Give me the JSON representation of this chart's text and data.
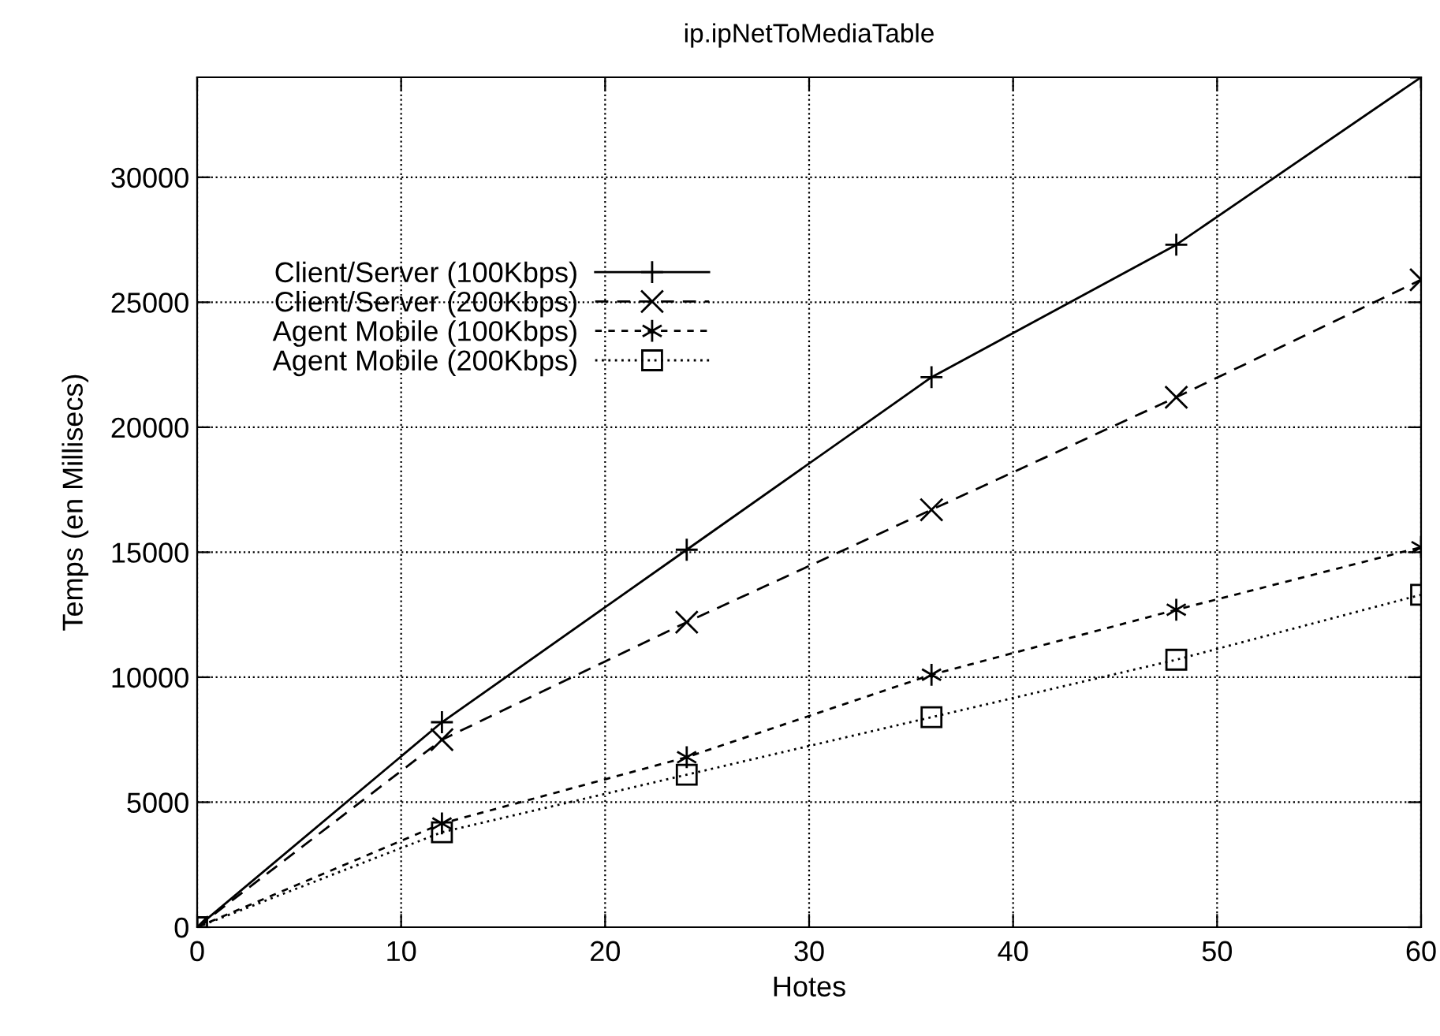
{
  "chart_data": {
    "type": "line",
    "title": "ip.ipNetToMediaTable",
    "xlabel": "Hotes",
    "ylabel": "Temps (en Millisecs)",
    "x": [
      0,
      12,
      24,
      36,
      48,
      60
    ],
    "series": [
      {
        "name": "Client/Server (100Kbps)",
        "color": "#000000",
        "marker": "plus",
        "line_style": "solid",
        "values": [
          0,
          8200,
          15100,
          22000,
          27300,
          34000
        ]
      },
      {
        "name": "Client/Server (200Kbps)",
        "color": "#000000",
        "marker": "x",
        "line_style": "dashed",
        "values": [
          0,
          7500,
          12200,
          16700,
          21200,
          25900
        ]
      },
      {
        "name": "Agent Mobile (100Kbps)",
        "color": "#000000",
        "marker": "cross",
        "line_style": "densely dashed",
        "values": [
          0,
          4150,
          6800,
          10100,
          12700,
          15200
        ]
      },
      {
        "name": "Agent Mobile (200Kbps)",
        "color": "#000000",
        "marker": "square",
        "line_style": "dotted",
        "values": [
          0,
          3800,
          6100,
          8400,
          10700,
          13300
        ]
      }
    ],
    "xlim": [
      0,
      60
    ],
    "xticks": [
      0,
      10,
      20,
      30,
      40,
      50,
      60
    ],
    "ylim": [
      0,
      34000
    ],
    "yticks": [
      0,
      5000,
      10000,
      15000,
      20000,
      25000,
      30000
    ],
    "grid": true,
    "legend": "top left"
  }
}
